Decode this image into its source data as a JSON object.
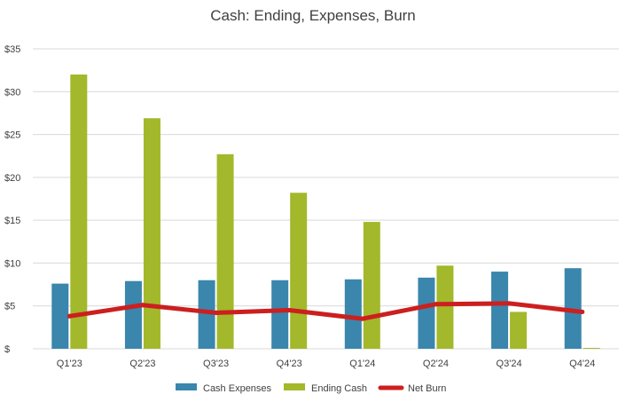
{
  "chart_data": {
    "type": "bar",
    "title": "Cash: Ending, Expenses, Burn",
    "xlabel": "",
    "ylabel": "",
    "categories": [
      "Q1'23",
      "Q2'23",
      "Q3'23",
      "Q4'23",
      "Q1'24",
      "Q2'24",
      "Q3'24",
      "Q4'24"
    ],
    "ylim": [
      0,
      35
    ],
    "yticks": [
      0,
      5,
      10,
      15,
      20,
      25,
      30,
      35
    ],
    "ytick_labels": [
      "$",
      "$5",
      "$10",
      "$15",
      "$20",
      "$25",
      "$30",
      "$35"
    ],
    "grid": true,
    "legend_position": "bottom",
    "series": [
      {
        "name": "Cash Expenses",
        "type": "bar",
        "color": "#3a86ad",
        "values": [
          7.6,
          7.9,
          8.0,
          8.0,
          8.1,
          8.3,
          9.0,
          9.4
        ]
      },
      {
        "name": "Ending Cash",
        "type": "bar",
        "color": "#a3b82a",
        "values": [
          32.0,
          26.9,
          22.7,
          18.2,
          14.8,
          9.7,
          4.3,
          0.1
        ]
      },
      {
        "name": "Net Burn",
        "type": "line",
        "color": "#cc1f1f",
        "values": [
          3.8,
          5.1,
          4.2,
          4.5,
          3.5,
          5.2,
          5.3,
          4.3
        ]
      }
    ]
  }
}
